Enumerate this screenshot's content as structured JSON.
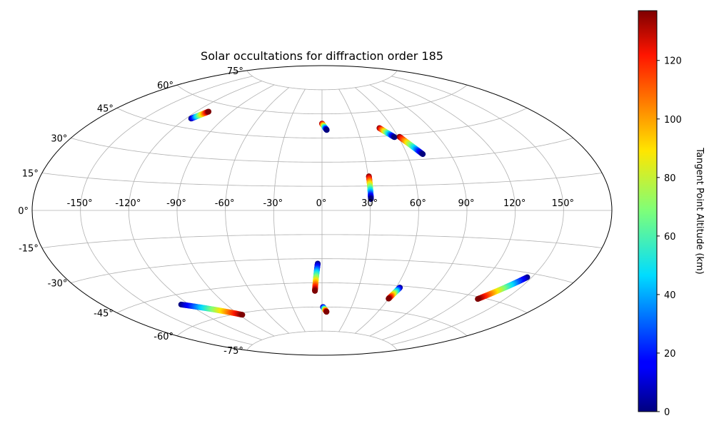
{
  "chart_data": {
    "type": "scatter",
    "projection": "aitoff",
    "title": "Solar occultations for diffraction order 185",
    "xlabel": "",
    "ylabel": "",
    "grid": true,
    "lon_ticks": [
      "-150°",
      "-120°",
      "-90°",
      "-60°",
      "-30°",
      "0°",
      "30°",
      "60°",
      "90°",
      "120°",
      "150°"
    ],
    "lat_ticks": [
      "75°",
      "60°",
      "45°",
      "30°",
      "15°",
      "0°",
      "-15°",
      "-30°",
      "-45°",
      "-60°",
      "-75°"
    ],
    "colorbar": {
      "label": "Tangent Point Altitude (km)",
      "range": [
        0,
        137
      ],
      "colormap": "jet",
      "ticks": [
        "0",
        "20",
        "40",
        "60",
        "80",
        "100",
        "120"
      ]
    },
    "series": [
      {
        "start": {
          "lon": -116,
          "lat": 50,
          "alt": 0
        },
        "end": {
          "lon": -110,
          "lat": 55,
          "alt": 137
        }
      },
      {
        "start": {
          "lon": 0,
          "lat": 54,
          "alt": 137
        },
        "end": {
          "lon": 4,
          "lat": 50,
          "alt": 0
        }
      },
      {
        "start": {
          "lon": 49,
          "lat": 50,
          "alt": 137
        },
        "end": {
          "lon": 57,
          "lat": 44,
          "alt": 0
        }
      },
      {
        "start": {
          "lon": 61,
          "lat": 44,
          "alt": 137
        },
        "end": {
          "lon": 71,
          "lat": 33,
          "alt": 0
        }
      },
      {
        "start": {
          "lon": 30.5,
          "lat": 21,
          "alt": 137
        },
        "end": {
          "lon": 30.5,
          "lat": 7,
          "alt": 0
        }
      },
      {
        "start": {
          "lon": -3,
          "lat": -33,
          "alt": 0
        },
        "end": {
          "lon": -6,
          "lat": -50,
          "alt": 137
        }
      },
      {
        "start": {
          "lon": 1,
          "lat": -60,
          "alt": 0
        },
        "end": {
          "lon": 5,
          "lat": -63,
          "alt": 137
        }
      },
      {
        "start": {
          "lon": -126,
          "lat": -50,
          "alt": 0
        },
        "end": {
          "lon": -87,
          "lat": -61,
          "alt": 137
        }
      },
      {
        "start": {
          "lon": 63,
          "lat": -46,
          "alt": 0
        },
        "end": {
          "lon": 60,
          "lat": -53,
          "alt": 137
        }
      },
      {
        "start": {
          "lon": 147,
          "lat": -32,
          "alt": 0
        },
        "end": {
          "lon": 131,
          "lat": -46,
          "alt": 137
        }
      }
    ]
  }
}
